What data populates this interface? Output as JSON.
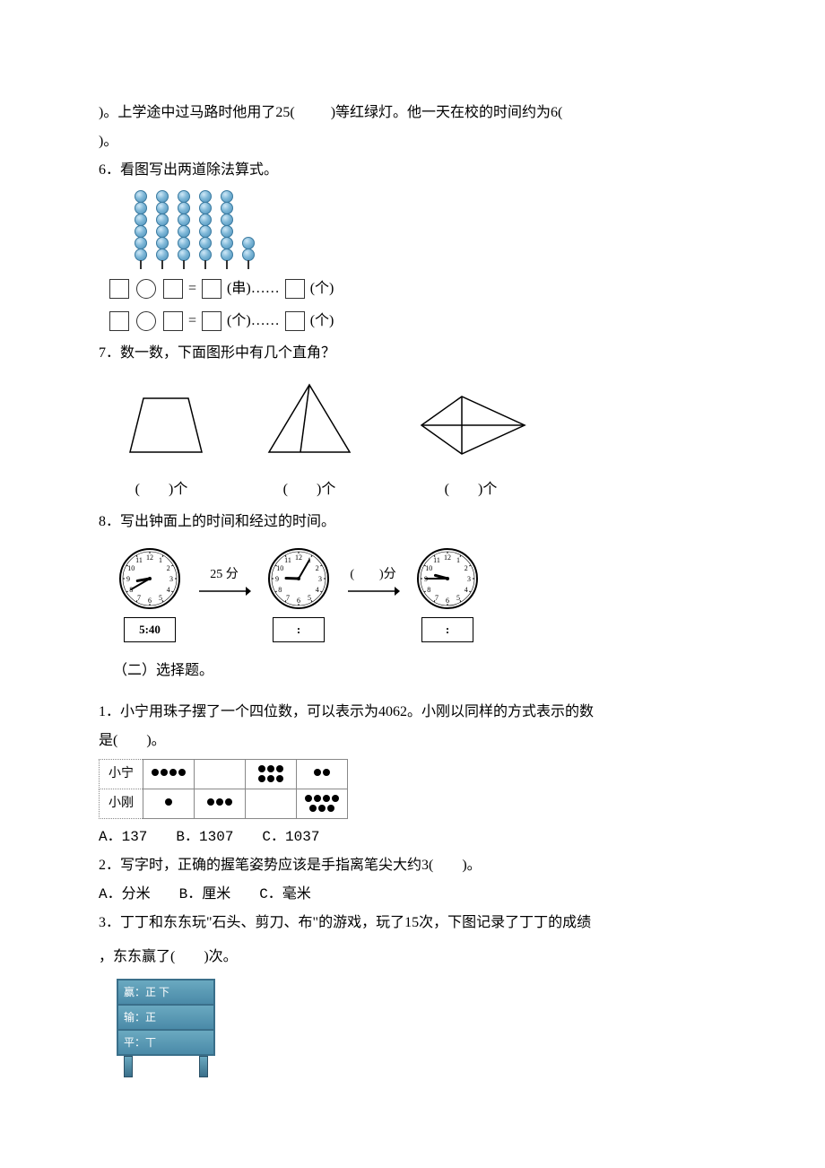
{
  "q_pre": {
    "line1_a": ")。上学途中过马路时他用了25(",
    "line1_b": ")等红绿灯。他一天在校的时间约为6(",
    "line2": ")。"
  },
  "q6": {
    "title": "6．看图写出两道除法算式。",
    "beads_per_column": [
      6,
      6,
      6,
      6,
      6,
      2
    ],
    "bead_color": "#7fb8d8",
    "eq1_suffix_a": "(串)……",
    "eq1_suffix_b": "(个)",
    "eq2_suffix_a": "(个)……",
    "eq2_suffix_b": "(个)"
  },
  "q7": {
    "title": "7．数一数，下面图形中有几个直角？",
    "blank_label": "(　　)个"
  },
  "q8": {
    "title": "8．写出钟面上的时间和经过的时间。",
    "clock1": {
      "hour_angle": 260,
      "minute_angle": 240,
      "label": "5:40"
    },
    "arrow1_label": "25 分",
    "clock2": {
      "hour_angle": 272,
      "minute_angle": 30,
      "label": ":"
    },
    "arrow2_label": "(　　)分",
    "clock3": {
      "hour_angle": 285,
      "minute_angle": 270,
      "label": ":"
    }
  },
  "section2": "（二）选择题。",
  "mc1": {
    "stem_a": "1．小宁用珠子摆了一个四位数，可以表示为4062。小刚以同样的方式表示的数",
    "stem_b": "是(　　)。",
    "rows": [
      {
        "name": "小宁",
        "cells": [
          4,
          0,
          6,
          2
        ]
      },
      {
        "name": "小刚",
        "cells": [
          1,
          3,
          0,
          7
        ]
      }
    ],
    "opts": "A．137　　B．1307　　C．1037"
  },
  "mc2": {
    "stem": "2．写字时，正确的握笔姿势应该是手指离笔尖大约3(　　)。",
    "opts": "A．分米　　B．厘米　　C．毫米"
  },
  "mc3": {
    "stem_a": "3．丁丁和东东玩\"石头、剪刀、布\"的游戏，玩了15次，下图记录了丁丁的成绩",
    "stem_b": "，东东赢了(　　)次。",
    "tally": {
      "row1": "赢：正 下",
      "row2": "输：正",
      "row3": "平：丅"
    }
  }
}
